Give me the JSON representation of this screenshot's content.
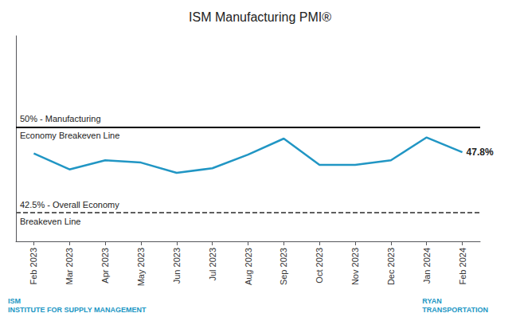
{
  "chart_data": {
    "type": "line",
    "title": "ISM Manufacturing PMI®",
    "categories": [
      "Feb 2023",
      "Mar 2023",
      "Apr 2023",
      "May 2023",
      "Jun 2023",
      "Jul 2023",
      "Aug 2023",
      "Sep 2023",
      "Oct 2023",
      "Nov 2023",
      "Dec 2023",
      "Jan 2024",
      "Feb 2024"
    ],
    "values": [
      47.7,
      46.3,
      47.1,
      46.9,
      46.0,
      46.4,
      47.6,
      49.0,
      46.7,
      46.7,
      47.1,
      49.1,
      47.8
    ],
    "color": "#2196C4",
    "ylim": [
      40,
      58
    ],
    "tick_labels": "x",
    "grid": false,
    "reference_lines": [
      {
        "value": 50,
        "label": [
          "50% - Manufacturing",
          "Economy Breakeven Line"
        ],
        "color": "#000000",
        "line_style": "solid"
      },
      {
        "value": 42.5,
        "label": [
          "42.5% - Overall Economy",
          "Breakeven Line"
        ],
        "color": "#555555",
        "line_style": "dashed"
      }
    ],
    "annotations": [
      {
        "text": "47.8%",
        "x": "Feb 2024",
        "y": 47.8
      },
      {
        "text": "ISM\nINSTITUTE FOR SUPPLY MANAGEMENT",
        "color": "#2196C4"
      },
      {
        "text": "RYAN\nTRANSPORTATION",
        "color": "#2196C4"
      }
    ]
  }
}
